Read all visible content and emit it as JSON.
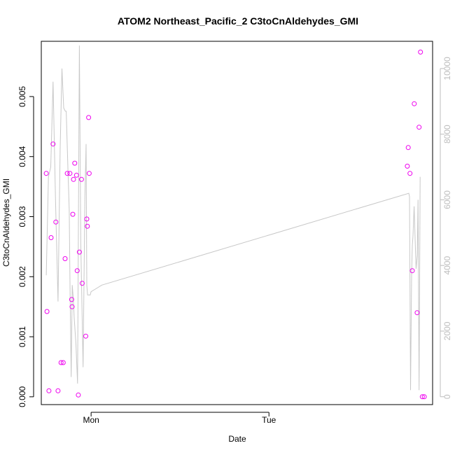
{
  "chart_data": {
    "type": "scatter",
    "title": "ATOM2 Northeast_Pacific_2 C3toCnAldehydes_GMI",
    "xlabel": "Date",
    "ylabel": "C3toCnAldehydes_GMI",
    "x_axis": {
      "unit": "days",
      "range": [
        -0.28,
        1.92
      ],
      "ticks": [
        {
          "value": 0,
          "label": "Mon"
        },
        {
          "value": 1,
          "label": "Tue"
        }
      ]
    },
    "y_axis_left": {
      "range": [
        -0.00013,
        0.00592
      ],
      "ticks": [
        0.0,
        0.001,
        0.002,
        0.003,
        0.004,
        0.005
      ],
      "tick_labels": [
        "0.000",
        "0.001",
        "0.002",
        "0.003",
        "0.004",
        "0.005"
      ],
      "tick_color": "#000000"
    },
    "y_axis_right": {
      "range": [
        -240,
        10830
      ],
      "ticks": [
        0,
        2000,
        4000,
        6000,
        8000,
        10000
      ],
      "tick_labels": [
        "0",
        "2000",
        "4000",
        "6000",
        "8000",
        "10000"
      ],
      "tick_color": "#bdbdbd"
    },
    "series": [
      {
        "kind": "scatter",
        "axis": "left",
        "color": "#ee00ee",
        "x": [
          -0.252,
          -0.248,
          -0.237,
          -0.225,
          -0.214,
          -0.198,
          -0.186,
          -0.169,
          -0.157,
          -0.146,
          -0.134,
          -0.119,
          -0.109,
          -0.107,
          -0.103,
          -0.099,
          -0.092,
          -0.082,
          -0.078,
          -0.072,
          -0.066,
          -0.054,
          -0.05,
          -0.03,
          -0.024,
          -0.021,
          -0.014,
          -0.011,
          1.778,
          1.783,
          1.793,
          1.806,
          1.817,
          1.833,
          1.844,
          1.852,
          1.862,
          1.873
        ],
        "y": [
          0.00372,
          0.00142,
          0.0001,
          0.00265,
          0.00421,
          0.00291,
          0.0001,
          0.00057,
          0.00057,
          0.0023,
          0.00372,
          0.00372,
          0.00162,
          0.0015,
          0.00304,
          0.00362,
          0.00389,
          0.00369,
          0.0021,
          3e-05,
          0.00241,
          0.00362,
          0.00189,
          0.00101,
          0.00296,
          0.00284,
          0.00465,
          0.00372,
          0.00384,
          0.00415,
          0.00372,
          0.0021,
          0.00488,
          0.0014,
          0.00449,
          0.00574,
          0.0,
          0.0
        ]
      },
      {
        "kind": "line",
        "axis": "right",
        "color": "#c8c8c8",
        "x": [
          -0.252,
          -0.24,
          -0.227,
          -0.214,
          -0.2,
          -0.186,
          -0.174,
          -0.164,
          -0.154,
          -0.145,
          -0.14,
          -0.13,
          -0.123,
          -0.118,
          -0.112,
          -0.106,
          -0.1,
          -0.095,
          -0.085,
          -0.076,
          -0.066,
          -0.058,
          -0.05,
          -0.045,
          -0.04,
          -0.035,
          -0.028,
          -0.024,
          -0.02,
          -0.012,
          -0.005,
          0.0,
          0.03,
          0.06,
          1.786,
          1.79,
          1.796,
          1.802,
          1.806,
          1.81,
          1.816,
          1.82,
          1.827,
          1.834,
          1.838,
          1.844,
          1.85
        ],
        "y": [
          3700,
          6700,
          7000,
          9600,
          6000,
          2900,
          7500,
          10000,
          8800,
          8700,
          8700,
          6900,
          5700,
          3000,
          600,
          3400,
          3000,
          2400,
          1600,
          400,
          10700,
          4700,
          2400,
          900,
          3500,
          6100,
          7700,
          3400,
          3100,
          3100,
          3100,
          3200,
          3300,
          3400,
          6200,
          6100,
          200,
          3700,
          4600,
          4900,
          5800,
          5100,
          3900,
          4300,
          6000,
          200,
          6700
        ]
      }
    ]
  }
}
